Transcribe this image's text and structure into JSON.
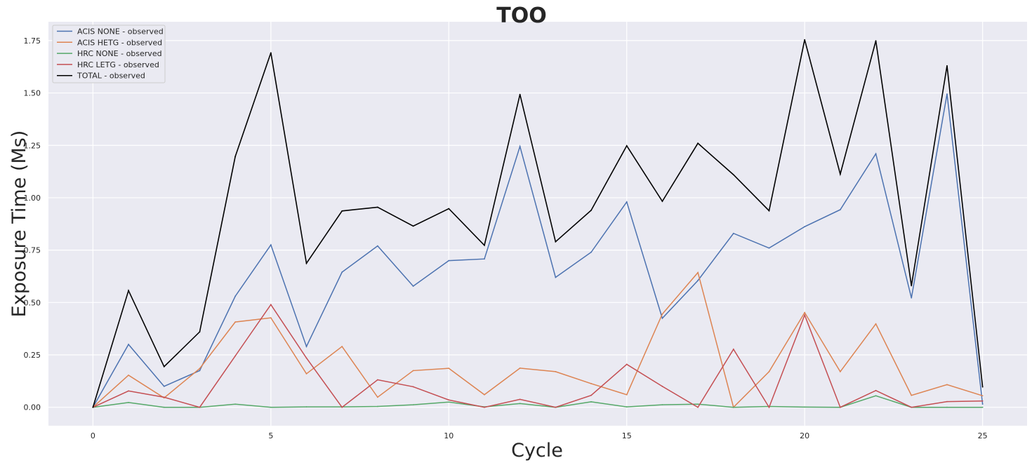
{
  "chart_data": {
    "type": "line",
    "title": "TOO",
    "xlabel": "Cycle",
    "ylabel": "Exposure Time (Ms)",
    "xlim": [
      -1.25,
      26.25
    ],
    "ylim": [
      -0.088,
      1.84
    ],
    "xticks": [
      0,
      5,
      10,
      15,
      20,
      25
    ],
    "yticks": [
      0.0,
      0.25,
      0.5,
      0.75,
      1.0,
      1.25,
      1.5,
      1.75
    ],
    "xtick_labels": [
      "0",
      "5",
      "10",
      "15",
      "20",
      "25"
    ],
    "ytick_labels": [
      "0.00",
      "0.25",
      "0.50",
      "0.75",
      "1.00",
      "1.25",
      "1.50",
      "1.75"
    ],
    "grid": true,
    "legend_position": "top-left",
    "x": [
      0,
      1,
      2,
      3,
      4,
      5,
      6,
      7,
      8,
      9,
      10,
      11,
      12,
      13,
      14,
      15,
      16,
      17,
      18,
      19,
      20,
      21,
      22,
      23,
      24,
      25
    ],
    "series": [
      {
        "name": "ACIS NONE - observed",
        "color": "#4c72b0",
        "values": [
          0.0,
          0.3,
          0.1,
          0.175,
          0.53,
          0.775,
          0.29,
          0.645,
          0.77,
          0.578,
          0.7,
          0.708,
          1.245,
          0.62,
          0.74,
          0.98,
          0.425,
          0.605,
          0.83,
          0.76,
          0.862,
          0.943,
          1.21,
          0.522,
          1.495,
          0.015
        ]
      },
      {
        "name": "ACIS HETG - observed",
        "color": "#dd8452",
        "values": [
          0.0,
          0.153,
          0.045,
          0.185,
          0.407,
          0.427,
          0.16,
          0.29,
          0.048,
          0.175,
          0.186,
          0.06,
          0.187,
          0.17,
          0.113,
          0.06,
          0.445,
          0.643,
          0.0,
          0.17,
          0.452,
          0.17,
          0.398,
          0.057,
          0.108,
          0.055
        ]
      },
      {
        "name": "HRC NONE - observed",
        "color": "#55a868",
        "values": [
          0.0,
          0.023,
          0.0,
          0.0,
          0.015,
          0.0,
          0.002,
          0.002,
          0.004,
          0.012,
          0.025,
          0.002,
          0.018,
          0.0,
          0.026,
          0.002,
          0.012,
          0.015,
          0.0,
          0.004,
          0.001,
          0.0,
          0.055,
          0.0,
          0.0,
          0.0
        ]
      },
      {
        "name": "HRC LETG - observed",
        "color": "#c44e52",
        "values": [
          0.0,
          0.078,
          0.048,
          0.0,
          0.245,
          0.49,
          0.235,
          0.0,
          0.131,
          0.098,
          0.035,
          0.0,
          0.038,
          0.0,
          0.057,
          0.205,
          0.1,
          0.0,
          0.277,
          0.0,
          0.44,
          0.0,
          0.08,
          0.0,
          0.027,
          0.03
        ]
      },
      {
        "name": "TOTAL - observed",
        "color": "#000000",
        "values": [
          0.0,
          0.557,
          0.194,
          0.36,
          1.197,
          1.692,
          0.687,
          0.937,
          0.955,
          0.865,
          0.948,
          0.773,
          1.493,
          0.79,
          0.94,
          1.248,
          0.983,
          1.26,
          1.11,
          0.938,
          1.754,
          1.113,
          1.749,
          0.58,
          1.63,
          0.097
        ]
      }
    ]
  }
}
